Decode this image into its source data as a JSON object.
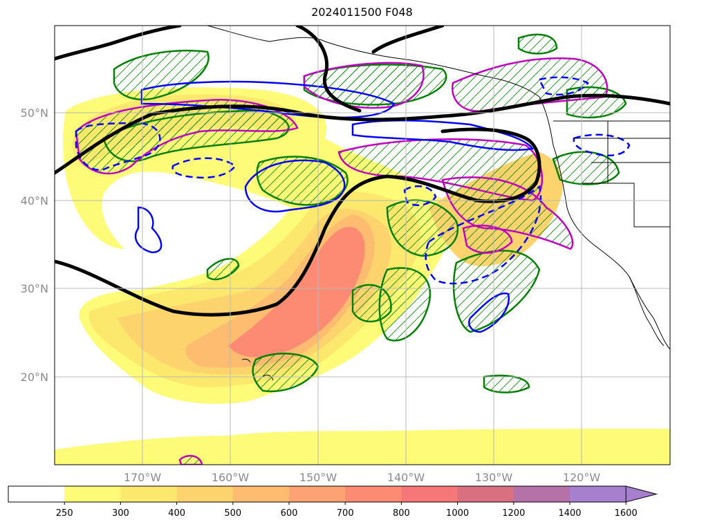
{
  "title": "2024011500 F048",
  "map": {
    "lon_range": [
      -180,
      -110
    ],
    "lat_range": [
      10,
      60
    ],
    "lat_ticks": [
      {
        "value": 50,
        "label": "50°N"
      },
      {
        "value": 40,
        "label": "40°N"
      },
      {
        "value": 30,
        "label": "30°N"
      },
      {
        "value": 20,
        "label": "20°N"
      }
    ],
    "lon_ticks": [
      {
        "value": -170,
        "label": "170°W"
      },
      {
        "value": -160,
        "label": "160°W"
      },
      {
        "value": -150,
        "label": "150°W"
      },
      {
        "value": -140,
        "label": "140°W"
      },
      {
        "value": -130,
        "label": "130°W"
      },
      {
        "value": -120,
        "label": "120°W"
      }
    ],
    "grid": true,
    "colors": {
      "black_contour": "#000000",
      "blue_contour": "#0000ff",
      "magenta_contour": "#c000c0",
      "green_contour": "#008000",
      "coastline": "#000000"
    }
  },
  "colorbar": {
    "labels": [
      "250",
      "300",
      "400",
      "500",
      "600",
      "700",
      "800",
      "1000",
      "1200",
      "1400",
      "1600"
    ],
    "colors": [
      "#ffffff",
      "#fefb78",
      "#fde86e",
      "#fdd36e",
      "#fdbc70",
      "#fda272",
      "#fd8b74",
      "#f57777",
      "#d97080",
      "#b572a8",
      "#a67fcf"
    ],
    "extend": "max"
  }
}
